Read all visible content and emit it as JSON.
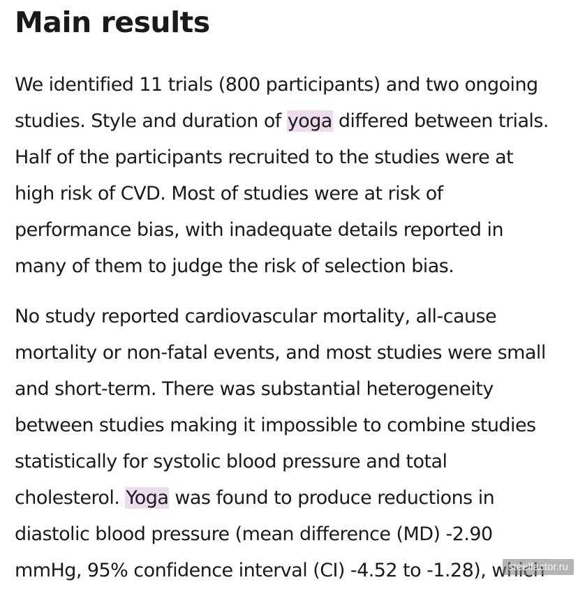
{
  "heading": "Main results",
  "paragraph1": {
    "lines": [
      [
        "We identified 11 trials (800 participants) and two ongoing"
      ],
      [
        "studies. Style and duration of ",
        "yoga",
        " differed between trials."
      ],
      [
        "Half of the participants recruited to the studies were at"
      ],
      [
        "high risk of CVD. Most of studies were at risk of"
      ],
      [
        "performance bias, with inadequate details reported in"
      ],
      [
        "many of them to judge the risk of selection bias."
      ]
    ]
  },
  "paragraph2": {
    "lines": [
      [
        "No study reported cardiovascular mortality, all-cause"
      ],
      [
        "mortality or non-fatal events, and most studies were small"
      ],
      [
        "and short-term. There was substantial heterogeneity"
      ],
      [
        "between studies making it impossible to combine studies"
      ],
      [
        "statistically for systolic blood pressure and total"
      ],
      [
        "cholesterol. ",
        "Yoga",
        " was found to produce reductions in"
      ],
      [
        "diastolic blood pressure (mean difference (MD) -2.90"
      ],
      [
        "mmHg, 95% confidence interval (CI) -4.52 to -1.28), which"
      ]
    ]
  },
  "highlight_color": "#ecdcee",
  "watermark": "steelfactor.ru"
}
